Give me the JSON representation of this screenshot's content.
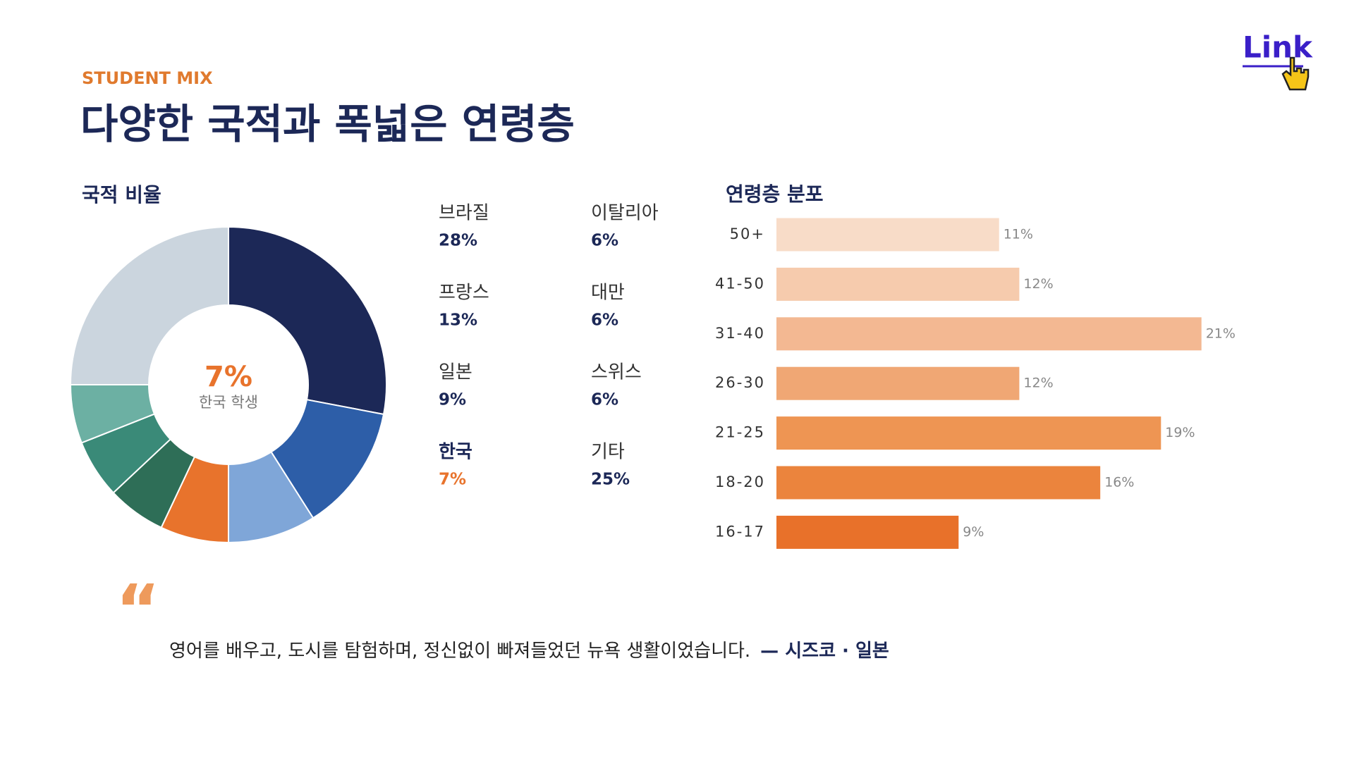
{
  "header": {
    "kicker": "STUDENT MIX",
    "title": "다양한 국적과 폭넓은 연령층",
    "logo": "Link"
  },
  "chart_data": [
    {
      "type": "donut",
      "title": "국적 비율",
      "categories": [
        "브라질",
        "프랑스",
        "일본",
        "한국",
        "이탈리아",
        "대만",
        "스위스",
        "기타"
      ],
      "values": [
        28,
        13,
        9,
        7,
        6,
        6,
        6,
        25
      ],
      "value_labels": [
        "28%",
        "13%",
        "9%",
        "7%",
        "6%",
        "6%",
        "6%",
        "25%"
      ],
      "colors": [
        "#1c2857",
        "#2d5ea8",
        "#7fa6d8",
        "#e8732c",
        "#2e6e57",
        "#3a8a78",
        "#6cb0a3",
        "#cbd5de"
      ],
      "highlight": 3,
      "center_caption": "한국 학생"
    },
    {
      "type": "hbar",
      "title": "연령층 분포",
      "categories": [
        "50+",
        "41-50",
        "31-40",
        "26-30",
        "21-25",
        "18-20",
        "16-17"
      ],
      "values": [
        11,
        12,
        21,
        12,
        19,
        16,
        9
      ],
      "value_labels": [
        "11%",
        "12%",
        "21%",
        "12%",
        "19%",
        "16%",
        "9%"
      ],
      "colors": [
        "#f8dcc8",
        "#f6cbad",
        "#f3b892",
        "#f0a774",
        "#ee9553",
        "#eb843d",
        "#e8712a"
      ]
    }
  ],
  "quote": {
    "mark": "“",
    "text": "영어를 배우고, 도시를 탐험하며, 정신없이 빠져들었던 뉴욕 생활이었습니다.",
    "author": "— 시즈코 · 일본"
  }
}
